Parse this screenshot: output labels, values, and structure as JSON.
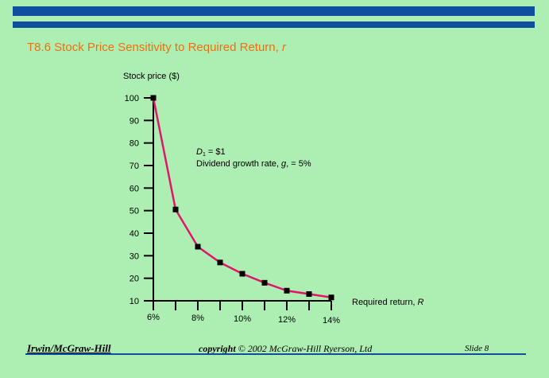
{
  "slide": {
    "title_prefix": "T8.6   Stock Price Sensitivity to Required Return, ",
    "title_var": "r",
    "footer_left": "Irwin/McGraw-Hill",
    "footer_copyright_word": "copyright",
    "footer_copyright_rest": " © 2002 McGraw-Hill Ryerson, Ltd",
    "footer_right": "Slide 8",
    "colors": {
      "bars": "#0f4fa0",
      "background": "#adefb2",
      "title": "#ef6f0d",
      "line": "#e0166a",
      "marker": "#000000"
    }
  },
  "chart_data": {
    "type": "line",
    "title": "",
    "ylabel": "Stock price ($)",
    "xlabel": "Required return, R",
    "ylim": [
      10,
      100
    ],
    "xlim": [
      6,
      14
    ],
    "yticks": [
      100,
      90,
      80,
      70,
      60,
      50,
      40,
      30,
      20,
      10
    ],
    "xtick_labels": [
      {
        "x": 6,
        "label": "6%"
      },
      {
        "x": 8,
        "label": "8%"
      },
      {
        "x": 10,
        "label": "10%"
      },
      {
        "x": 12,
        "label": "12%"
      },
      {
        "x": 14,
        "label": "14%"
      }
    ],
    "xticks_all": [
      6,
      7,
      8,
      9,
      10,
      11,
      12,
      13,
      14
    ],
    "series": [
      {
        "x": [
          6,
          7,
          8,
          9,
          10,
          11,
          12,
          13,
          14
        ],
        "y": [
          100,
          50.5,
          34,
          27,
          22,
          18,
          14.5,
          13,
          11.5
        ]
      }
    ],
    "annotation": {
      "line1_var": "D",
      "line1_sub": "1",
      "line1_rest": " = $1",
      "line2_prefix": "Dividend growth rate, ",
      "line2_var": "g",
      "line2_suffix": ", = 5%"
    },
    "grid": false
  }
}
